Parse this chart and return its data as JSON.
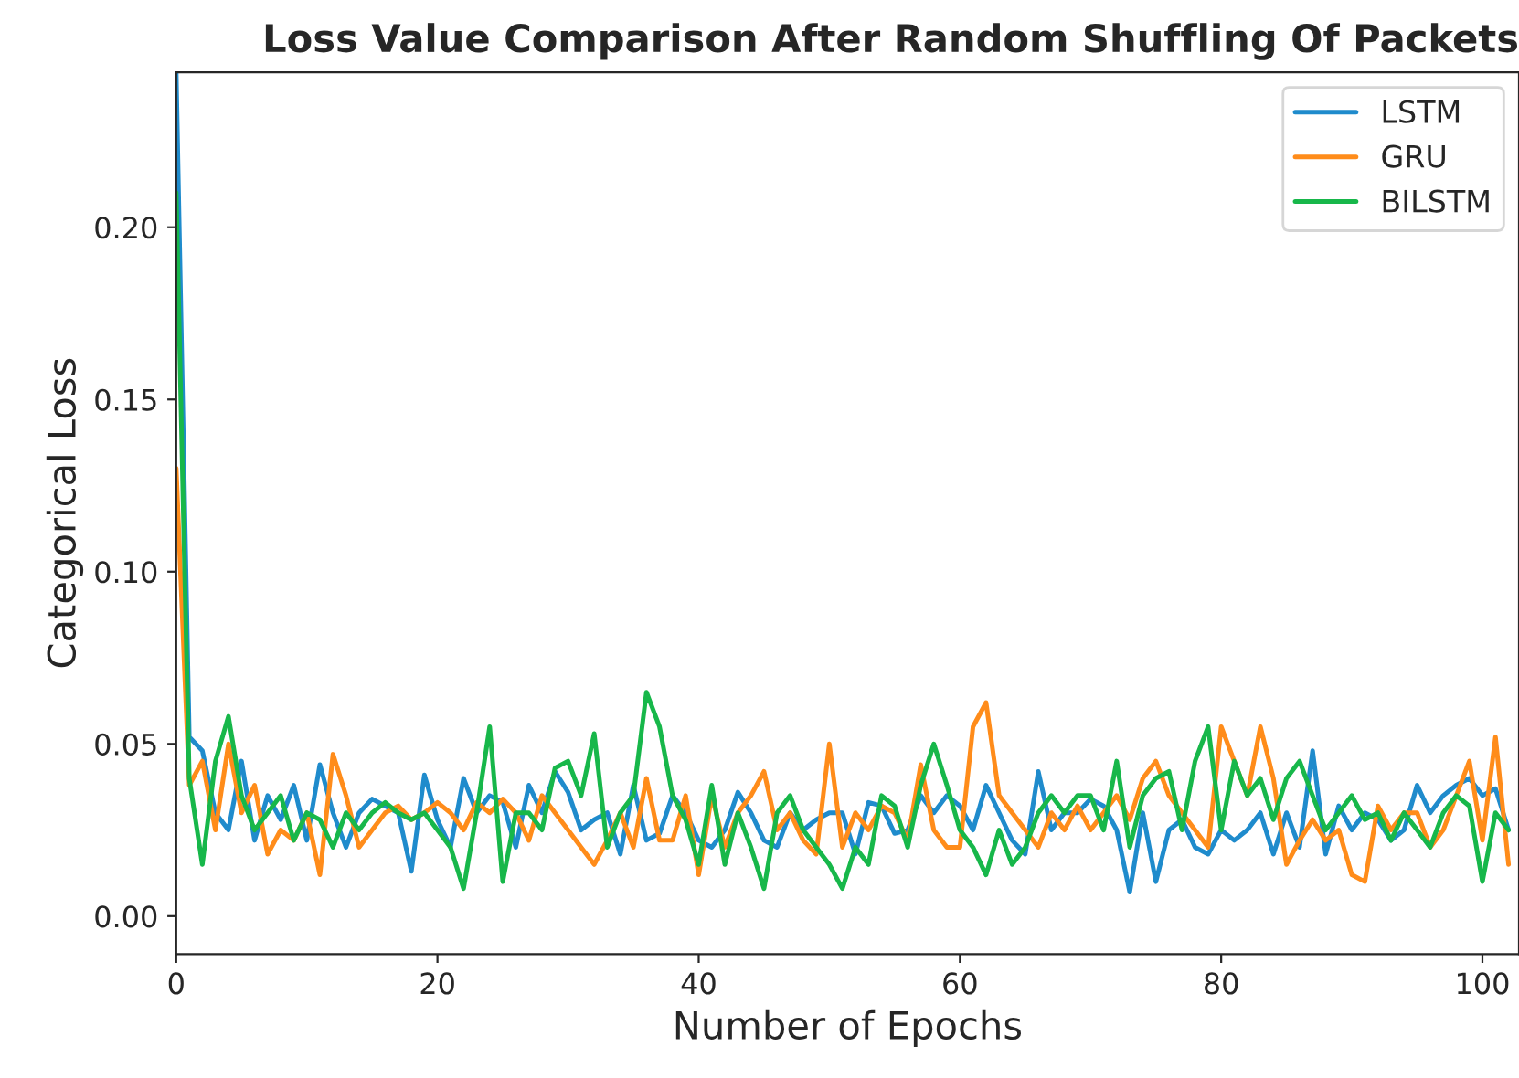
{
  "chart_data": {
    "type": "line",
    "title": "Loss Value Comparison After Random Shuffling Of Packets",
    "xlabel": "Number of Epochs",
    "ylabel": "Categorical Loss",
    "x": [
      0,
      1,
      2,
      3,
      4,
      5,
      6,
      7,
      8,
      9,
      10,
      11,
      12,
      13,
      14,
      15,
      16,
      17,
      18,
      19,
      20,
      21,
      22,
      23,
      24,
      25,
      26,
      27,
      28,
      29,
      30,
      31,
      32,
      33,
      34,
      35,
      36,
      37,
      38,
      39,
      40,
      41,
      42,
      43,
      44,
      45,
      46,
      47,
      48,
      49,
      50,
      51,
      52,
      53,
      54,
      55,
      56,
      57,
      58,
      59,
      60,
      61,
      62,
      63,
      64,
      65,
      66,
      67,
      68,
      69,
      70,
      71,
      72,
      73,
      74,
      75,
      76,
      77,
      78,
      79,
      80,
      81,
      82,
      83,
      84,
      85,
      86,
      87,
      88,
      89,
      90,
      91,
      92,
      93,
      94,
      95,
      96,
      97,
      98,
      99,
      100,
      101,
      102
    ],
    "series": [
      {
        "name": "LSTM",
        "color": "#1f8bcc",
        "values": [
          0.245,
          0.052,
          0.048,
          0.03,
          0.025,
          0.045,
          0.022,
          0.035,
          0.028,
          0.038,
          0.022,
          0.044,
          0.03,
          0.02,
          0.03,
          0.034,
          0.032,
          0.03,
          0.013,
          0.041,
          0.028,
          0.02,
          0.04,
          0.03,
          0.035,
          0.033,
          0.02,
          0.038,
          0.03,
          0.042,
          0.036,
          0.025,
          0.028,
          0.03,
          0.018,
          0.038,
          0.022,
          0.024,
          0.035,
          0.03,
          0.022,
          0.02,
          0.025,
          0.036,
          0.03,
          0.022,
          0.02,
          0.03,
          0.025,
          0.028,
          0.03,
          0.03,
          0.018,
          0.033,
          0.032,
          0.024,
          0.025,
          0.035,
          0.03,
          0.035,
          0.032,
          0.025,
          0.038,
          0.03,
          0.022,
          0.018,
          0.042,
          0.025,
          0.03,
          0.03,
          0.034,
          0.032,
          0.025,
          0.007,
          0.03,
          0.01,
          0.025,
          0.028,
          0.02,
          0.018,
          0.025,
          0.022,
          0.025,
          0.03,
          0.018,
          0.03,
          0.02,
          0.048,
          0.018,
          0.032,
          0.025,
          0.03,
          0.028,
          0.022,
          0.025,
          0.038,
          0.03,
          0.035,
          0.038,
          0.04,
          0.035,
          0.037,
          0.025
        ]
      },
      {
        "name": "GRU",
        "color": "#ff8c1a",
        "values": [
          0.13,
          0.038,
          0.045,
          0.025,
          0.05,
          0.03,
          0.038,
          0.018,
          0.025,
          0.022,
          0.03,
          0.012,
          0.047,
          0.035,
          0.02,
          0.025,
          0.03,
          0.032,
          0.028,
          0.03,
          0.033,
          0.03,
          0.025,
          0.033,
          0.03,
          0.034,
          0.03,
          0.022,
          0.035,
          0.03,
          0.025,
          0.02,
          0.015,
          0.022,
          0.03,
          0.02,
          0.04,
          0.022,
          0.022,
          0.035,
          0.012,
          0.035,
          0.02,
          0.03,
          0.035,
          0.042,
          0.025,
          0.03,
          0.022,
          0.018,
          0.05,
          0.02,
          0.03,
          0.025,
          0.032,
          0.03,
          0.022,
          0.044,
          0.025,
          0.02,
          0.02,
          0.055,
          0.062,
          0.035,
          0.03,
          0.025,
          0.02,
          0.03,
          0.025,
          0.032,
          0.025,
          0.03,
          0.035,
          0.028,
          0.04,
          0.045,
          0.035,
          0.03,
          0.025,
          0.02,
          0.055,
          0.045,
          0.035,
          0.055,
          0.04,
          0.015,
          0.022,
          0.028,
          0.022,
          0.025,
          0.012,
          0.01,
          0.032,
          0.025,
          0.03,
          0.03,
          0.02,
          0.025,
          0.035,
          0.045,
          0.022,
          0.052,
          0.015
        ]
      },
      {
        "name": "BILSTM",
        "color": "#17b74a",
        "values": [
          0.21,
          0.04,
          0.015,
          0.045,
          0.058,
          0.035,
          0.025,
          0.03,
          0.035,
          0.022,
          0.03,
          0.028,
          0.02,
          0.03,
          0.025,
          0.03,
          0.033,
          0.03,
          0.028,
          0.03,
          0.025,
          0.02,
          0.008,
          0.03,
          0.055,
          0.01,
          0.03,
          0.03,
          0.025,
          0.043,
          0.045,
          0.035,
          0.053,
          0.02,
          0.03,
          0.035,
          0.065,
          0.055,
          0.035,
          0.028,
          0.015,
          0.038,
          0.015,
          0.03,
          0.02,
          0.008,
          0.03,
          0.035,
          0.025,
          0.02,
          0.015,
          0.008,
          0.02,
          0.015,
          0.035,
          0.032,
          0.02,
          0.038,
          0.05,
          0.038,
          0.025,
          0.02,
          0.012,
          0.025,
          0.015,
          0.02,
          0.03,
          0.035,
          0.03,
          0.035,
          0.035,
          0.025,
          0.045,
          0.02,
          0.035,
          0.04,
          0.042,
          0.025,
          0.045,
          0.055,
          0.025,
          0.045,
          0.035,
          0.04,
          0.028,
          0.04,
          0.045,
          0.035,
          0.025,
          0.03,
          0.035,
          0.028,
          0.03,
          0.022,
          0.03,
          0.025,
          0.02,
          0.03,
          0.035,
          0.032,
          0.01,
          0.03,
          0.025
        ]
      }
    ],
    "xlim": [
      0,
      102.8
    ],
    "xticks": [
      0,
      20,
      40,
      60,
      80,
      100
    ],
    "ylim": [
      -0.011,
      0.245
    ],
    "yticks": [
      {
        "value": 0,
        "label": "0.00"
      },
      {
        "value": 0.05,
        "label": "0.05"
      },
      {
        "value": 0.1,
        "label": "0.10"
      },
      {
        "value": 0.15,
        "label": "0.15"
      },
      {
        "value": 0.2,
        "label": "0.20"
      }
    ],
    "legend": "top right",
    "grid": false,
    "marker": "none",
    "line_style": "solid"
  }
}
